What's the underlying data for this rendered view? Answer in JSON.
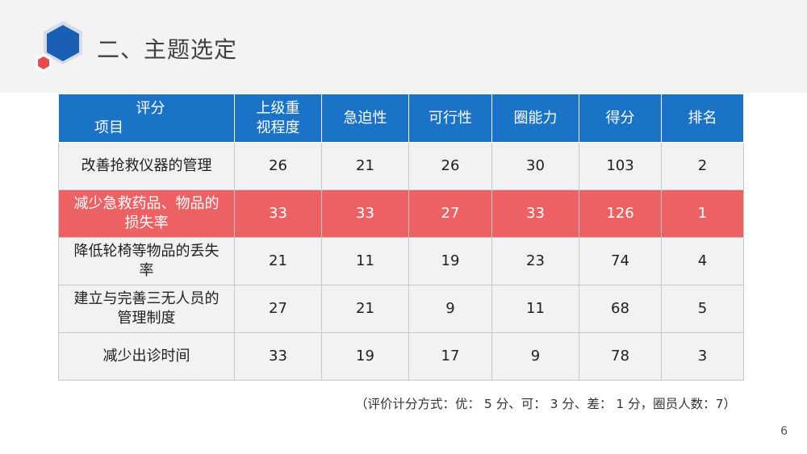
{
  "slide": {
    "title": "二、主题选定",
    "page_number": "6",
    "footnote": "（评价计分方式：优： 5 分、可： 3 分、差： 1 分，圈员人数：7）"
  },
  "table": {
    "corner_top": "评分",
    "corner_bottom": "项目",
    "columns": [
      "上级重视程度",
      "急迫性",
      "可行性",
      "圈能力",
      "得分",
      "排名"
    ],
    "rows": [
      {
        "item": "改善抢救仪器的管理",
        "values": [
          "26",
          "21",
          "26",
          "30",
          "103",
          "2"
        ],
        "highlight": false
      },
      {
        "item": "减少急救药品、物品的损失率",
        "values": [
          "33",
          "33",
          "27",
          "33",
          "126",
          "1"
        ],
        "highlight": true
      },
      {
        "item": "降低轮椅等物品的丢失率",
        "values": [
          "21",
          "11",
          "19",
          "23",
          "74",
          "4"
        ],
        "highlight": false
      },
      {
        "item": "建立与完善三无人员的管理制度",
        "values": [
          "27",
          "21",
          "9",
          "11",
          "68",
          "5"
        ],
        "highlight": false
      },
      {
        "item": "减少出诊时间",
        "values": [
          "33",
          "19",
          "17",
          "9",
          "78",
          "3"
        ],
        "highlight": false
      }
    ]
  },
  "colors": {
    "header_blue": "#1a73c6",
    "highlight_red": "#ec6164",
    "logo_blue": "#1a5fb4",
    "logo_red": "#e8494c"
  }
}
